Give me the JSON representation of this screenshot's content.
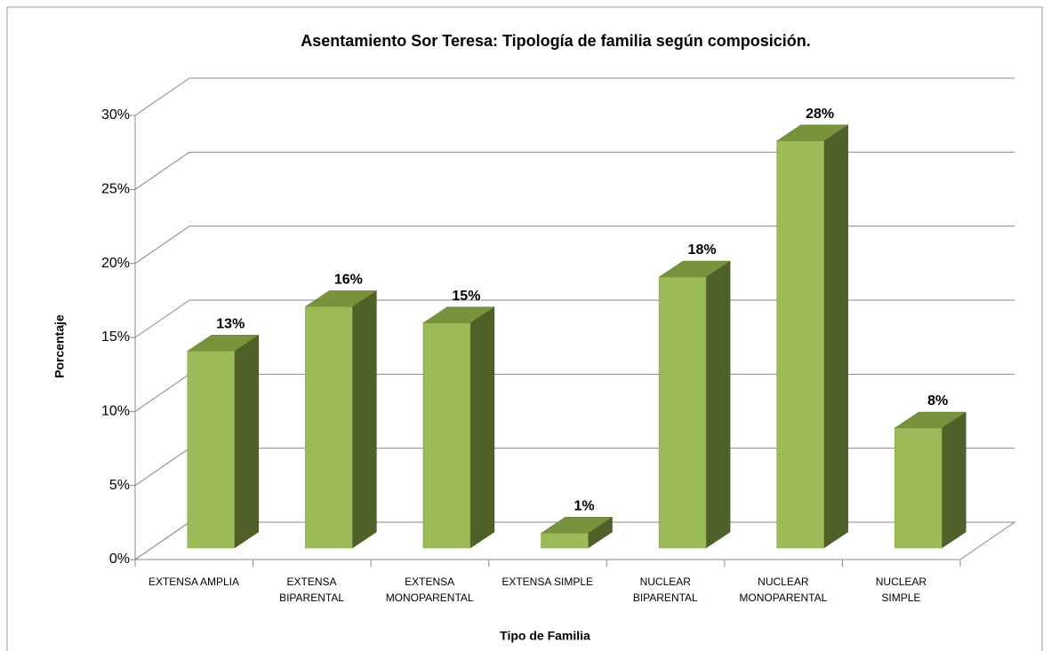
{
  "chart_data": {
    "type": "bar3d",
    "title": "Asentamiento Sor Teresa: Tipología de familia según composición.",
    "xlabel": "Tipo de Familia",
    "ylabel": "Porcentaje",
    "categories": [
      "EXTENSA AMPLIA",
      "EXTENSA\nBIPARENTAL",
      "EXTENSA\nMONOPARENTAL",
      "EXTENSA SIMPLE",
      "NUCLEAR\nBIPARENTAL",
      "NUCLEAR\nMONOPARENTAL",
      "NUCLEAR\nSIMPLE"
    ],
    "values": [
      13.3,
      16.3,
      15.2,
      1.0,
      18.3,
      27.5,
      8.1
    ],
    "value_labels": [
      "13%",
      "16%",
      "15%",
      "1%",
      "18%",
      "28%",
      "8%"
    ],
    "color": "#9bbb59",
    "ylim": [
      0,
      30
    ],
    "yticks": [
      {
        "value": 0,
        "label": "0%"
      },
      {
        "value": 5,
        "label": "5%"
      },
      {
        "value": 10,
        "label": "10%"
      },
      {
        "value": 15,
        "label": "15%"
      },
      {
        "value": 20,
        "label": "20%"
      },
      {
        "value": 25,
        "label": "25%"
      },
      {
        "value": 30,
        "label": "30%"
      }
    ],
    "grid": true
  }
}
